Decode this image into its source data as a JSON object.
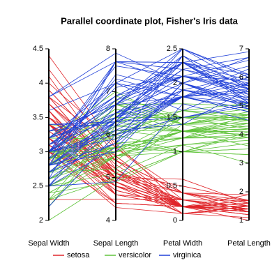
{
  "chart_data": {
    "type": "parallel",
    "title": "Parallel coordinate plot, Fisher's Iris data",
    "dimensions": [
      {
        "name": "Sepal Width",
        "lim": [
          2,
          4.5
        ],
        "ticks": [
          2,
          2.5,
          3,
          3.5,
          4,
          4.5
        ]
      },
      {
        "name": "Sepal Length",
        "lim": [
          4,
          8
        ],
        "ticks": [
          4,
          5,
          6,
          7,
          8
        ]
      },
      {
        "name": "Petal Width",
        "lim": [
          0,
          2.5
        ],
        "ticks": [
          0,
          0.5,
          1,
          1.5,
          2,
          2.5
        ]
      },
      {
        "name": "Petal Length",
        "lim": [
          1,
          7
        ],
        "ticks": [
          1,
          2,
          3,
          4,
          5,
          6,
          7
        ]
      }
    ],
    "series": [
      {
        "name": "setosa",
        "color": "#e0262b",
        "values": [
          [
            3.5,
            5.1,
            0.2,
            1.4
          ],
          [
            3,
            4.9,
            0.2,
            1.4
          ],
          [
            3.2,
            4.7,
            0.2,
            1.3
          ],
          [
            3.1,
            4.6,
            0.2,
            1.5
          ],
          [
            3.6,
            5,
            0.2,
            1.4
          ],
          [
            3.9,
            5.4,
            0.4,
            1.7
          ],
          [
            3.4,
            4.6,
            0.3,
            1.4
          ],
          [
            3.4,
            5,
            0.2,
            1.5
          ],
          [
            2.9,
            4.4,
            0.2,
            1.4
          ],
          [
            3.1,
            4.9,
            0.1,
            1.5
          ],
          [
            3.7,
            5.4,
            0.2,
            1.5
          ],
          [
            3.4,
            4.8,
            0.2,
            1.6
          ],
          [
            3,
            4.8,
            0.1,
            1.4
          ],
          [
            3,
            4.3,
            0.1,
            1.1
          ],
          [
            4,
            5.8,
            0.2,
            1.2
          ],
          [
            4.4,
            5.7,
            0.4,
            1.5
          ],
          [
            3.9,
            5.4,
            0.4,
            1.3
          ],
          [
            3.5,
            5.1,
            0.3,
            1.4
          ],
          [
            3.8,
            5.7,
            0.3,
            1.7
          ],
          [
            3.8,
            5.1,
            0.3,
            1.5
          ],
          [
            3.4,
            5.4,
            0.2,
            1.7
          ],
          [
            3.7,
            5.1,
            0.4,
            1.5
          ],
          [
            3.6,
            4.6,
            0.2,
            1
          ],
          [
            3.3,
            5.1,
            0.5,
            1.7
          ],
          [
            3.4,
            4.8,
            0.2,
            1.9
          ],
          [
            3,
            5,
            0.2,
            1.6
          ],
          [
            3.4,
            5,
            0.4,
            1.6
          ],
          [
            3.5,
            5.2,
            0.2,
            1.5
          ],
          [
            3.4,
            5.2,
            0.2,
            1.4
          ],
          [
            3.2,
            4.7,
            0.2,
            1.6
          ],
          [
            3.1,
            4.8,
            0.2,
            1.6
          ],
          [
            3.4,
            5.4,
            0.4,
            1.5
          ],
          [
            4.1,
            5.2,
            0.1,
            1.5
          ],
          [
            4.2,
            5.5,
            0.2,
            1.4
          ],
          [
            3.1,
            4.9,
            0.2,
            1.5
          ],
          [
            3.2,
            5,
            0.2,
            1.2
          ],
          [
            3.5,
            5.5,
            0.2,
            1.3
          ],
          [
            3.6,
            4.9,
            0.1,
            1.4
          ],
          [
            3,
            4.4,
            0.2,
            1.3
          ],
          [
            3.4,
            5.1,
            0.2,
            1.5
          ],
          [
            3.5,
            5,
            0.3,
            1.3
          ],
          [
            2.3,
            4.5,
            0.3,
            1.3
          ],
          [
            3.2,
            4.4,
            0.2,
            1.3
          ],
          [
            3.5,
            5,
            0.6,
            1.6
          ],
          [
            3.8,
            5.1,
            0.4,
            1.9
          ],
          [
            3,
            4.8,
            0.3,
            1.4
          ],
          [
            3.8,
            5.1,
            0.2,
            1.6
          ],
          [
            3.2,
            4.6,
            0.2,
            1.4
          ],
          [
            3.7,
            5.3,
            0.2,
            1.5
          ],
          [
            3.3,
            5,
            0.2,
            1.4
          ]
        ]
      },
      {
        "name": "versicolor",
        "color": "#5fc33a",
        "values": [
          [
            3.2,
            7,
            1.4,
            4.7
          ],
          [
            3.2,
            6.4,
            1.5,
            4.5
          ],
          [
            3.1,
            6.9,
            1.5,
            4.9
          ],
          [
            2.3,
            5.5,
            1.3,
            4
          ],
          [
            2.8,
            6.5,
            1.5,
            4.6
          ],
          [
            2.8,
            5.7,
            1.3,
            4.5
          ],
          [
            3.3,
            6.3,
            1.6,
            4.7
          ],
          [
            2.4,
            4.9,
            1,
            3.3
          ],
          [
            2.9,
            6.6,
            1.3,
            4.6
          ],
          [
            2.7,
            5.2,
            1.4,
            3.9
          ],
          [
            2,
            5,
            1,
            3.5
          ],
          [
            3,
            5.9,
            1.5,
            4.2
          ],
          [
            2.2,
            6,
            1,
            4
          ],
          [
            2.9,
            6.1,
            1.4,
            4.7
          ],
          [
            2.9,
            5.6,
            1.3,
            3.6
          ],
          [
            3.1,
            6.7,
            1.4,
            4.4
          ],
          [
            3,
            5.6,
            1.5,
            4.5
          ],
          [
            2.7,
            5.8,
            1,
            4.1
          ],
          [
            2.2,
            6.2,
            1.5,
            4.5
          ],
          [
            2.5,
            5.6,
            1.1,
            3.9
          ],
          [
            3.2,
            5.9,
            1.8,
            4.8
          ],
          [
            2.8,
            6.1,
            1.3,
            4
          ],
          [
            2.5,
            6.3,
            1.5,
            4.9
          ],
          [
            2.8,
            6.1,
            1.2,
            4.7
          ],
          [
            2.9,
            6.4,
            1.3,
            4.3
          ],
          [
            3,
            6.6,
            1.4,
            4.4
          ],
          [
            2.8,
            6.8,
            1.4,
            4.8
          ],
          [
            3,
            6.7,
            1.7,
            5
          ],
          [
            2.9,
            6,
            1.5,
            4.5
          ],
          [
            2.6,
            5.7,
            1,
            3.5
          ],
          [
            2.4,
            5.5,
            1.1,
            3.8
          ],
          [
            2.4,
            5.5,
            1,
            3.7
          ],
          [
            2.7,
            5.8,
            1.2,
            3.9
          ],
          [
            2.7,
            6,
            1.6,
            5.1
          ],
          [
            3,
            5.4,
            1.5,
            4.5
          ],
          [
            3.4,
            6,
            1.6,
            4.5
          ],
          [
            3.1,
            6.7,
            1.5,
            4.7
          ],
          [
            2.3,
            6.3,
            1.3,
            4.4
          ],
          [
            3,
            5.6,
            1.3,
            4.1
          ],
          [
            2.5,
            5.5,
            1.3,
            4
          ],
          [
            2.6,
            5.5,
            1.2,
            4.4
          ],
          [
            3,
            6.1,
            1.4,
            4.6
          ],
          [
            2.6,
            5.8,
            1.2,
            4
          ],
          [
            2.3,
            5,
            1,
            3.3
          ],
          [
            2.7,
            5.6,
            1.3,
            4.2
          ],
          [
            3,
            5.7,
            1.2,
            4.2
          ],
          [
            2.9,
            5.7,
            1.3,
            4.2
          ],
          [
            2.9,
            6.2,
            1.3,
            4.3
          ],
          [
            2.5,
            5.1,
            1.1,
            3
          ],
          [
            2.8,
            5.7,
            1.3,
            4.1
          ]
        ]
      },
      {
        "name": "virginica",
        "color": "#2040d8",
        "values": [
          [
            3.3,
            6.3,
            2.5,
            6
          ],
          [
            2.7,
            5.8,
            1.9,
            5.1
          ],
          [
            3,
            7.1,
            2.1,
            5.9
          ],
          [
            2.9,
            6.3,
            1.8,
            5.6
          ],
          [
            3,
            6.5,
            2.2,
            5.8
          ],
          [
            3,
            7.6,
            2.1,
            6.6
          ],
          [
            2.5,
            4.9,
            1.7,
            4.5
          ],
          [
            2.9,
            7.3,
            1.8,
            6.3
          ],
          [
            2.5,
            6.7,
            1.8,
            5.8
          ],
          [
            3.6,
            7.2,
            2.5,
            6.1
          ],
          [
            3.2,
            6.5,
            2,
            5.1
          ],
          [
            2.7,
            6.4,
            1.9,
            5.3
          ],
          [
            3,
            6.8,
            2.1,
            5.5
          ],
          [
            2.5,
            5.7,
            2,
            5
          ],
          [
            2.8,
            5.8,
            2.4,
            5.1
          ],
          [
            3.2,
            6.4,
            2.3,
            5.3
          ],
          [
            3,
            6.5,
            1.8,
            5.5
          ],
          [
            3.8,
            7.7,
            2.2,
            6.7
          ],
          [
            2.6,
            7.7,
            2.3,
            6.9
          ],
          [
            2.2,
            6,
            1.5,
            5
          ],
          [
            3.2,
            6.9,
            2.3,
            5.7
          ],
          [
            2.8,
            5.6,
            2,
            4.9
          ],
          [
            2.8,
            7.7,
            2,
            6.7
          ],
          [
            2.7,
            6.3,
            1.8,
            4.9
          ],
          [
            3.3,
            6.7,
            2.1,
            5.7
          ],
          [
            3.2,
            7.2,
            1.8,
            6
          ],
          [
            2.8,
            6.2,
            1.8,
            4.8
          ],
          [
            3,
            6.1,
            1.8,
            4.9
          ],
          [
            2.8,
            6.4,
            2.1,
            5.6
          ],
          [
            3,
            7.2,
            1.6,
            5.8
          ],
          [
            2.8,
            7.4,
            1.9,
            6.1
          ],
          [
            3.8,
            7.9,
            2,
            6.4
          ],
          [
            2.8,
            6.4,
            2.2,
            5.6
          ],
          [
            2.8,
            6.3,
            1.5,
            5.1
          ],
          [
            2.6,
            6.1,
            1.4,
            5.6
          ],
          [
            3,
            7.7,
            2.3,
            6.1
          ],
          [
            3.4,
            6.3,
            2.4,
            5.6
          ],
          [
            3.1,
            6.4,
            1.8,
            5.5
          ],
          [
            3,
            6,
            1.8,
            4.8
          ],
          [
            3.1,
            6.9,
            2.1,
            5.4
          ],
          [
            3.1,
            6.7,
            2.4,
            5.6
          ],
          [
            3.1,
            6.9,
            2.3,
            5.1
          ],
          [
            2.7,
            5.8,
            1.9,
            5.1
          ],
          [
            3.2,
            6.8,
            2.3,
            5.9
          ],
          [
            3.3,
            6.7,
            2.5,
            5.7
          ],
          [
            3,
            6.7,
            2.3,
            5.2
          ],
          [
            2.5,
            6.3,
            1.9,
            5
          ],
          [
            3,
            6.5,
            2,
            5.2
          ],
          [
            3.4,
            6.2,
            2.3,
            5.4
          ],
          [
            3,
            5.9,
            1.8,
            5.1
          ]
        ]
      }
    ]
  }
}
